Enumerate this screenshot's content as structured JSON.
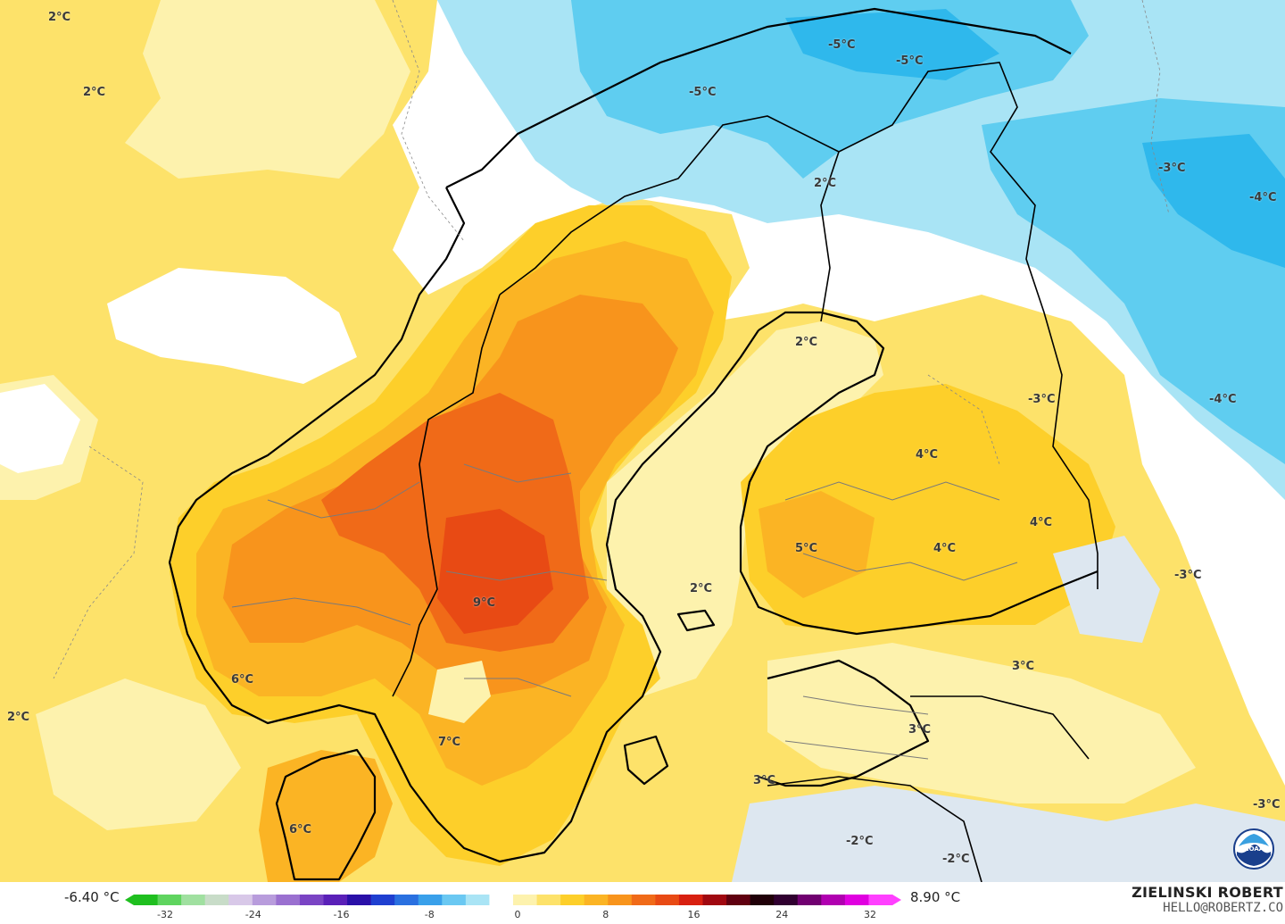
{
  "map": {
    "subject": "2 m temperature anomaly over Scandinavia and the Baltic region",
    "colors": {
      "sea_white": "#ffffff",
      "pale_yellow": "#fdf2ad",
      "yellow": "#fde26a",
      "gold": "#fdcf2a",
      "light_orange": "#fbb424",
      "orange": "#f8941c",
      "dark_orange": "#f06a18",
      "red_orange": "#e84a14",
      "light_blue": "#a9e4f5",
      "mid_blue": "#5fcdf0",
      "blue": "#2fb8ec",
      "pale_blue_grey": "#dde7f0",
      "coast": "#000000",
      "border": "#7a7a7a"
    },
    "labels": [
      {
        "text": "2°C"
      },
      {
        "text": "2°C"
      },
      {
        "text": "2°C"
      },
      {
        "text": "-5°C"
      },
      {
        "text": "-5°C"
      },
      {
        "text": "-5°C"
      },
      {
        "text": "2°C"
      },
      {
        "text": "-3°C"
      },
      {
        "text": "-4°C"
      },
      {
        "text": "2°C"
      },
      {
        "text": "-3°C"
      },
      {
        "text": "-4°C"
      },
      {
        "text": "4°C"
      },
      {
        "text": "4°C"
      },
      {
        "text": "5°C"
      },
      {
        "text": "4°C"
      },
      {
        "text": "-3°C"
      },
      {
        "text": "2°C"
      },
      {
        "text": "9°C"
      },
      {
        "text": "6°C"
      },
      {
        "text": "3°C"
      },
      {
        "text": "7°C"
      },
      {
        "text": "3°C"
      },
      {
        "text": "3°C"
      },
      {
        "text": "6°C"
      },
      {
        "text": "-2°C"
      },
      {
        "text": "-2°C"
      },
      {
        "text": "-3°C"
      }
    ]
  },
  "legend": {
    "min_value": "-6.40 °C",
    "max_value": "8.90 °C",
    "ticks": [
      "-32",
      "-24",
      "-16",
      "-8",
      "0",
      "8",
      "16",
      "24",
      "32"
    ],
    "scale_colors": [
      "#1fbf1f",
      "#5fd45f",
      "#a0e0a0",
      "#c8dcc8",
      "#d8c8e8",
      "#b89cdc",
      "#9a70d0",
      "#7a44c4",
      "#5a20b8",
      "#2a10a8",
      "#1f3fd0",
      "#2a70e0",
      "#39a0ea",
      "#6ac8f2",
      "#a9e4f5",
      "#ffffff",
      "#fdf2ad",
      "#fde26a",
      "#fdcf2a",
      "#fbb424",
      "#f8941c",
      "#f06a18",
      "#e84a14",
      "#d82010",
      "#a00810",
      "#600010",
      "#200008",
      "#300030",
      "#700070",
      "#b000b0",
      "#e000e0",
      "#ff40ff"
    ]
  },
  "credits": {
    "name": "ZIELINSKI ROBERT",
    "email": "HELLO@ROBERTZ.CO",
    "logo": "noaa-logo"
  }
}
